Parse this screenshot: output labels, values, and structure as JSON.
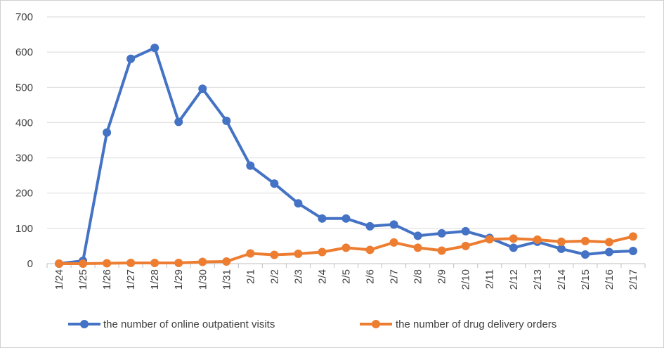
{
  "chart_data": {
    "type": "line",
    "title": "",
    "xlabel": "",
    "ylabel": "",
    "ylim": [
      0,
      700
    ],
    "yticks": [
      0,
      100,
      200,
      300,
      400,
      500,
      600,
      700
    ],
    "grid": true,
    "legend_position": "bottom",
    "categories": [
      "1/24",
      "1/25",
      "1/26",
      "1/27",
      "1/28",
      "1/29",
      "1/30",
      "1/31",
      "2/1",
      "2/2",
      "2/3",
      "2/4",
      "2/5",
      "2/6",
      "2/7",
      "2/8",
      "2/9",
      "2/10",
      "2/11",
      "2/12",
      "2/13",
      "2/14",
      "2/15",
      "2/16",
      "2/17"
    ],
    "series": [
      {
        "name": "the number of online outpatient visits",
        "color": "#4472C4",
        "values": [
          0,
          8,
          372,
          581,
          612,
          402,
          496,
          405,
          278,
          227,
          171,
          128,
          128,
          106,
          111,
          79,
          86,
          92,
          73,
          45,
          62,
          42,
          26,
          33,
          36
        ]
      },
      {
        "name": "the number of drug delivery orders",
        "color": "#ED7D31",
        "values": [
          0,
          0,
          1,
          2,
          2,
          2,
          5,
          6,
          29,
          25,
          28,
          33,
          45,
          39,
          60,
          45,
          37,
          50,
          69,
          71,
          68,
          62,
          64,
          61,
          77
        ]
      }
    ]
  }
}
